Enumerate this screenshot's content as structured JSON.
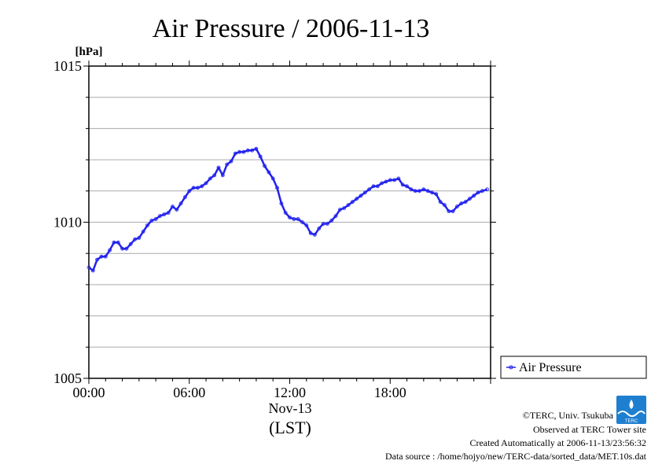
{
  "title": "Air Pressure / 2006-11-13",
  "credits": {
    "copyright": "©TERC, Univ. Tsukuba",
    "observed": "Observed at TERC Tower site",
    "created": "Created Automatically at 2006-11-13/23:56:32",
    "source": "Data source : /home/hojyo/new/TERC-data/sorted_data/MET.10s.dat"
  },
  "logo": {
    "text": "TERC",
    "color": "#1e7fd0"
  },
  "colors": {
    "series": "#2222ee",
    "grid": "#aaaaaa",
    "axis": "#000000"
  },
  "chart_data": {
    "type": "line",
    "title": "Air Pressure / 2006-11-13",
    "ylabel": "[hPa]",
    "xlabel": "(LST)",
    "date_label": "Nov-13",
    "ylim": [
      1005,
      1015
    ],
    "xlim": [
      0,
      24
    ],
    "x_unit": "hours",
    "x_ticks": [
      0,
      6,
      12,
      18
    ],
    "x_tick_labels": [
      "00:00",
      "06:00",
      "12:00",
      "18:00"
    ],
    "y_ticks": [
      1005,
      1010,
      1015
    ],
    "y_tick_labels": [
      "1005",
      "1010",
      "1015"
    ],
    "grid": true,
    "legend": {
      "position": "right",
      "entries": [
        "Air Pressure"
      ]
    },
    "series": [
      {
        "name": "Air Pressure",
        "x": [
          0.0,
          0.25,
          0.5,
          0.75,
          1.0,
          1.25,
          1.5,
          1.75,
          2.0,
          2.25,
          2.5,
          2.75,
          3.0,
          3.25,
          3.5,
          3.75,
          4.0,
          4.25,
          4.5,
          4.75,
          5.0,
          5.25,
          5.5,
          5.75,
          6.0,
          6.25,
          6.5,
          6.75,
          7.0,
          7.25,
          7.5,
          7.75,
          8.0,
          8.25,
          8.5,
          8.75,
          9.0,
          9.25,
          9.5,
          9.75,
          10.0,
          10.25,
          10.5,
          10.75,
          11.0,
          11.25,
          11.5,
          11.75,
          12.0,
          12.25,
          12.5,
          12.75,
          13.0,
          13.25,
          13.5,
          13.75,
          14.0,
          14.25,
          14.5,
          14.75,
          15.0,
          15.25,
          15.5,
          15.75,
          16.0,
          16.25,
          16.5,
          16.75,
          17.0,
          17.25,
          17.5,
          17.75,
          18.0,
          18.25,
          18.5,
          18.75,
          19.0,
          19.25,
          19.5,
          19.75,
          20.0,
          20.25,
          20.5,
          20.75,
          21.0,
          21.25,
          21.5,
          21.75,
          22.0,
          22.25,
          22.5,
          22.75,
          23.0,
          23.25,
          23.5,
          23.8
        ],
        "y": [
          1008.55,
          1008.45,
          1008.8,
          1008.9,
          1008.9,
          1009.1,
          1009.35,
          1009.35,
          1009.15,
          1009.15,
          1009.3,
          1009.45,
          1009.5,
          1009.7,
          1009.9,
          1010.05,
          1010.1,
          1010.2,
          1010.25,
          1010.3,
          1010.5,
          1010.4,
          1010.6,
          1010.8,
          1011.0,
          1011.1,
          1011.1,
          1011.15,
          1011.25,
          1011.4,
          1011.5,
          1011.75,
          1011.5,
          1011.85,
          1011.95,
          1012.2,
          1012.25,
          1012.25,
          1012.3,
          1012.3,
          1012.35,
          1012.1,
          1011.8,
          1011.6,
          1011.4,
          1011.1,
          1010.6,
          1010.3,
          1010.15,
          1010.1,
          1010.1,
          1010.0,
          1009.9,
          1009.65,
          1009.6,
          1009.8,
          1009.95,
          1009.95,
          1010.05,
          1010.2,
          1010.4,
          1010.45,
          1010.55,
          1010.65,
          1010.75,
          1010.85,
          1010.95,
          1011.05,
          1011.15,
          1011.15,
          1011.25,
          1011.3,
          1011.35,
          1011.35,
          1011.4,
          1011.2,
          1011.15,
          1011.05,
          1011.0,
          1011.0,
          1011.05,
          1011.0,
          1010.95,
          1010.9,
          1010.65,
          1010.55,
          1010.35,
          1010.35,
          1010.5,
          1010.6,
          1010.65,
          1010.75,
          1010.85,
          1010.95,
          1011.0,
          1011.05
        ]
      }
    ]
  }
}
